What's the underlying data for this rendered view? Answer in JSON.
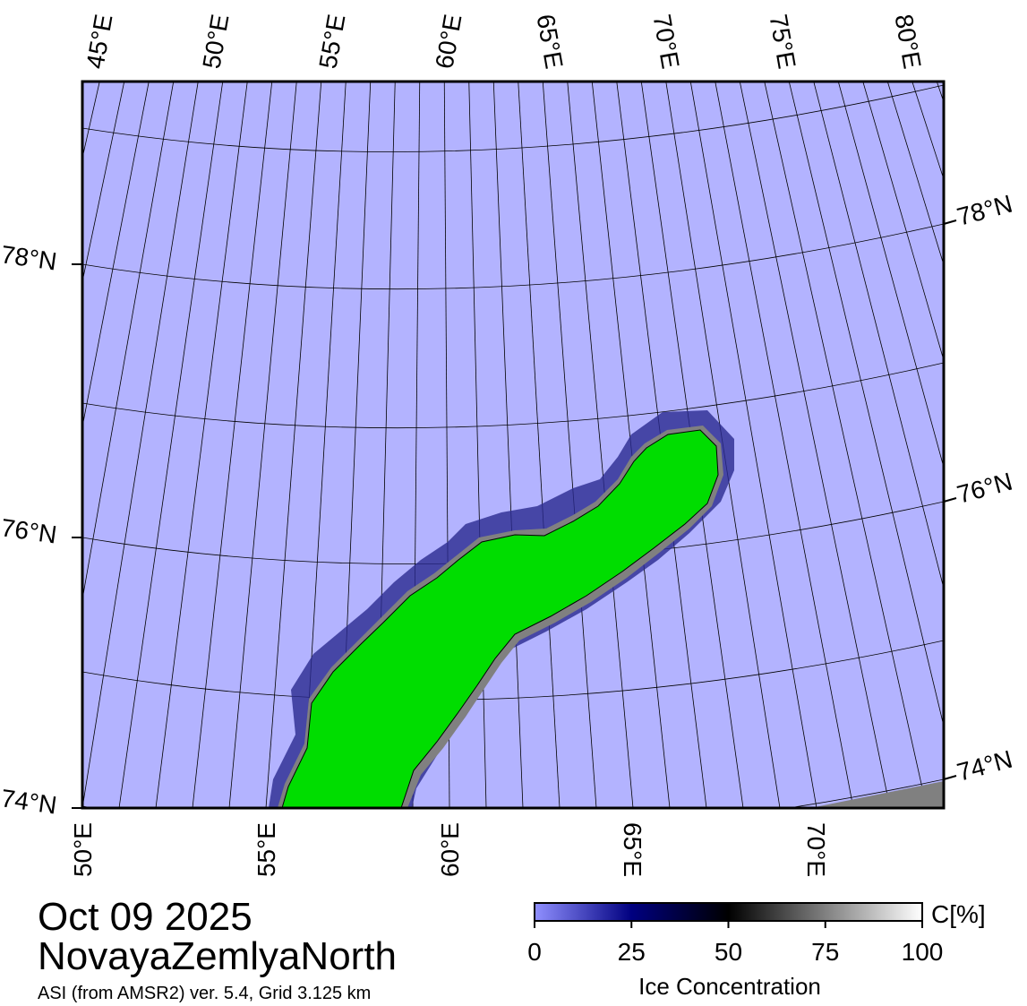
{
  "map": {
    "top_longitude_labels": [
      "45°E",
      "50°E",
      "55°E",
      "60°E",
      "65°E",
      "70°E",
      "75°E",
      "80°E"
    ],
    "bottom_longitude_labels": [
      "50°E",
      "55°E",
      "60°E",
      "65°E",
      "70°E"
    ],
    "left_latitude_labels": [
      "78°N",
      "76°N",
      "74°N"
    ],
    "right_latitude_labels": [
      "78°N",
      "76°N",
      "74°N"
    ]
  },
  "caption": {
    "date": "Oct 09 2025",
    "region": "NovayaZemlyaNorth",
    "source": "ASI (from AMSR2) ver. 5.4,  Grid 3.125 km"
  },
  "colorbar": {
    "unit": "C[%]",
    "label": "Ice Concentration",
    "lim": [
      0,
      100
    ],
    "ticks": [
      0,
      25,
      50,
      75,
      100
    ]
  }
}
